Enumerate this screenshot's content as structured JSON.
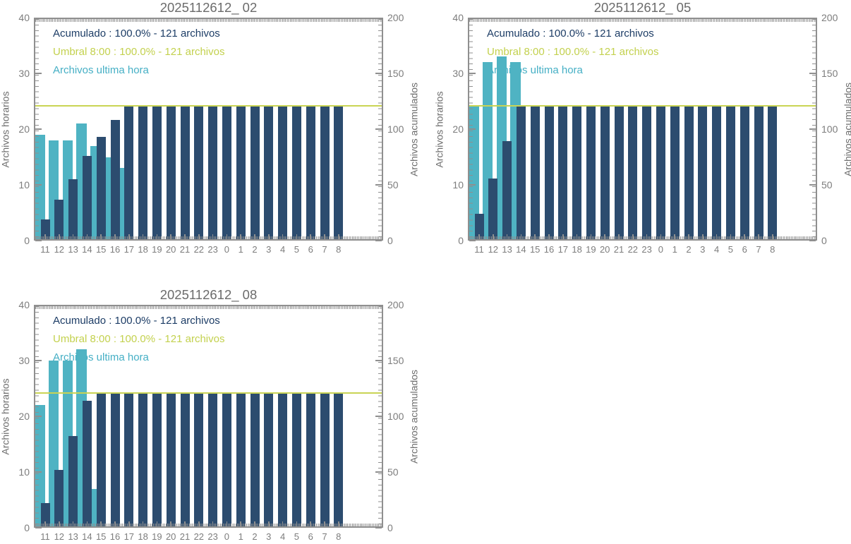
{
  "page": {
    "background": "#ffffff",
    "description": "Monitoring panel of hourly vs accumulated file counts for three stations"
  },
  "colors": {
    "hourly_bar": "#4FB3C3",
    "accumulated_bar": "#2C4C6F",
    "threshold_line": "#C9D454",
    "legend_text": [
      "#1D3D66",
      "#C3D14E",
      "#45AFC5"
    ],
    "frame": "#8F8F8F",
    "tick_label": "#7D7D7D",
    "title_text": "#6B6B6B",
    "axis_title_text": "#6E6E6E"
  },
  "axes": {
    "left_label": "Archivos horarios",
    "right_label": "Archivos acumulados",
    "left_range": [
      0,
      40
    ],
    "right_range": [
      0,
      200
    ],
    "left_ticks": [
      0,
      10,
      20,
      30,
      40
    ],
    "right_ticks": [
      0,
      50,
      100,
      150,
      200
    ],
    "categories": [
      "11",
      "12",
      "13",
      "14",
      "15",
      "16",
      "17",
      "18",
      "19",
      "20",
      "21",
      "22",
      "23",
      "0",
      "1",
      "2",
      "3",
      "4",
      "5",
      "6",
      "7",
      "8"
    ],
    "grid": false,
    "legend_position": "top-left-inside"
  },
  "chart_data": [
    {
      "type": "bar",
      "title": "2025112612_ 02",
      "legend": [
        "Acumulado : 100.0% - 121 archivos",
        "Umbral 8:00 : 100.0% - 121 archivos",
        "Archivos ultima hora"
      ],
      "threshold_value": 121,
      "series": [
        {
          "name": "Archivos ultima hora",
          "axis": "left",
          "values": [
            19,
            18,
            18,
            21,
            17,
            15,
            13,
            0,
            0,
            0,
            0,
            0,
            0,
            0,
            0,
            0,
            0,
            0,
            0,
            0,
            0,
            0
          ]
        },
        {
          "name": "Acumulado",
          "axis": "right",
          "values": [
            19,
            37,
            55,
            76,
            93,
            108,
            121,
            121,
            121,
            121,
            121,
            121,
            121,
            121,
            121,
            121,
            121,
            121,
            121,
            121,
            121,
            121
          ]
        }
      ]
    },
    {
      "type": "bar",
      "title": "2025112612_ 05",
      "legend": [
        "Acumulado : 100.0% - 121 archivos",
        "Umbral 8:00 : 100.0% - 121 archivos",
        "Archivos ultima hora"
      ],
      "threshold_value": 121,
      "series": [
        {
          "name": "Archivos ultima hora",
          "axis": "left",
          "values": [
            24,
            32,
            33,
            32,
            0,
            0,
            0,
            0,
            0,
            0,
            0,
            0,
            0,
            0,
            0,
            0,
            0,
            0,
            0,
            0,
            0,
            0
          ]
        },
        {
          "name": "Acumulado",
          "axis": "right",
          "values": [
            24,
            56,
            89,
            121,
            121,
            121,
            121,
            121,
            121,
            121,
            121,
            121,
            121,
            121,
            121,
            121,
            121,
            121,
            121,
            121,
            121,
            121
          ]
        }
      ]
    },
    {
      "type": "bar",
      "title": "2025112612_ 08",
      "legend": [
        "Acumulado : 100.0% - 121 archivos",
        "Umbral 8:00 : 100.0% - 121 archivos",
        "Archivos ultima hora"
      ],
      "threshold_value": 121,
      "series": [
        {
          "name": "Archivos ultima hora",
          "axis": "left",
          "values": [
            22,
            30,
            30,
            32,
            7,
            0,
            0,
            0,
            0,
            0,
            0,
            0,
            0,
            0,
            0,
            0,
            0,
            0,
            0,
            0,
            0,
            0
          ]
        },
        {
          "name": "Acumulado",
          "axis": "right",
          "values": [
            22,
            52,
            82,
            114,
            121,
            121,
            121,
            121,
            121,
            121,
            121,
            121,
            121,
            121,
            121,
            121,
            121,
            121,
            121,
            121,
            121,
            121
          ]
        }
      ]
    }
  ]
}
